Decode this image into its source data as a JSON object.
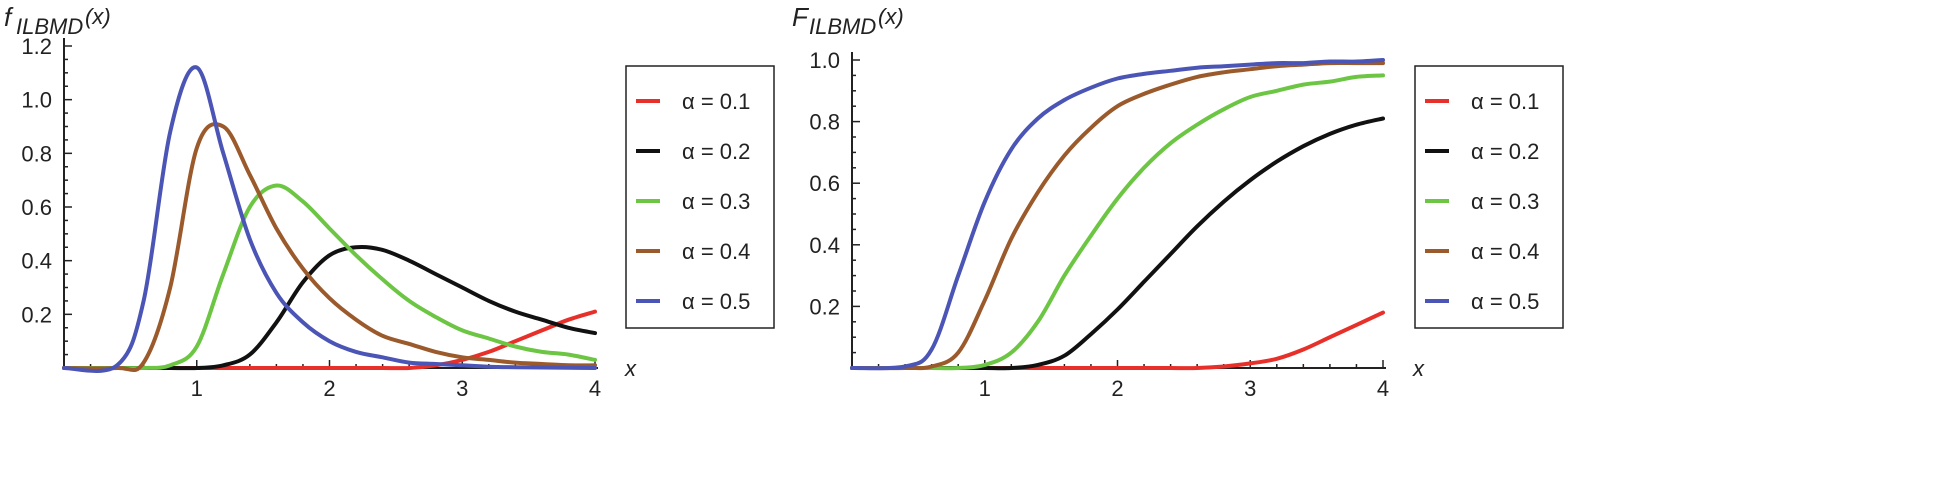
{
  "chart_data": [
    {
      "type": "line",
      "ylabel_main": "f",
      "ylabel_sub": "ILBMD",
      "ylabel_arg": "(x)",
      "xlabel": "x",
      "xlim": [
        0,
        4
      ],
      "ylim": [
        0,
        1.2
      ],
      "x_ticks": [
        1,
        2,
        3,
        4
      ],
      "y_ticks": [
        0.2,
        0.4,
        0.6,
        0.8,
        1.0,
        1.2
      ],
      "y_tick_labels": [
        "0.2",
        "0.4",
        "0.6",
        "0.8",
        "1.0",
        "1.2"
      ],
      "legend_position": "right",
      "x": [
        0,
        0.4,
        0.6,
        0.8,
        1.0,
        1.2,
        1.4,
        1.6,
        1.8,
        2.0,
        2.2,
        2.4,
        2.6,
        2.8,
        3.0,
        3.2,
        3.4,
        3.6,
        3.8,
        4.0
      ],
      "series": [
        {
          "name": "α = 0.1",
          "color": "#e8302a",
          "values": [
            0,
            0,
            0,
            0,
            0,
            0,
            0,
            0,
            0,
            0,
            0,
            0,
            0,
            0.01,
            0.03,
            0.06,
            0.1,
            0.14,
            0.18,
            0.21
          ]
        },
        {
          "name": "α = 0.2",
          "color": "#111111",
          "values": [
            0,
            0,
            0,
            0,
            0,
            0.01,
            0.05,
            0.17,
            0.32,
            0.42,
            0.45,
            0.44,
            0.4,
            0.35,
            0.3,
            0.25,
            0.21,
            0.18,
            0.15,
            0.13
          ]
        },
        {
          "name": "α = 0.3",
          "color": "#6cc644",
          "values": [
            0,
            0,
            0,
            0.01,
            0.08,
            0.35,
            0.6,
            0.68,
            0.62,
            0.52,
            0.42,
            0.33,
            0.25,
            0.19,
            0.14,
            0.11,
            0.08,
            0.06,
            0.05,
            0.03
          ]
        },
        {
          "name": "α = 0.4",
          "color": "#9b5a2c",
          "values": [
            0,
            0,
            0.02,
            0.3,
            0.82,
            0.9,
            0.72,
            0.52,
            0.37,
            0.26,
            0.18,
            0.12,
            0.09,
            0.06,
            0.04,
            0.03,
            0.02,
            0.015,
            0.01,
            0.01
          ]
        },
        {
          "name": "α = 0.5",
          "color": "#4b55b5",
          "values": [
            0,
            0.01,
            0.25,
            0.88,
            1.12,
            0.8,
            0.48,
            0.28,
            0.17,
            0.1,
            0.06,
            0.04,
            0.02,
            0.015,
            0.01,
            0.005,
            0.003,
            0.002,
            0.001,
            0
          ]
        }
      ]
    },
    {
      "type": "line",
      "ylabel_main": "F",
      "ylabel_sub": "ILBMD",
      "ylabel_arg": "(x)",
      "xlabel": "x",
      "xlim": [
        0,
        4
      ],
      "ylim": [
        0,
        1.0
      ],
      "x_ticks": [
        1,
        2,
        3,
        4
      ],
      "y_ticks": [
        0.2,
        0.4,
        0.6,
        0.8,
        1.0
      ],
      "y_tick_labels": [
        "0.2",
        "0.4",
        "0.6",
        "0.8",
        "1.0"
      ],
      "legend_position": "right",
      "x": [
        0,
        0.4,
        0.6,
        0.8,
        1.0,
        1.2,
        1.4,
        1.6,
        1.8,
        2.0,
        2.2,
        2.4,
        2.6,
        2.8,
        3.0,
        3.2,
        3.4,
        3.6,
        3.8,
        4.0
      ],
      "series": [
        {
          "name": "α = 0.1",
          "color": "#e8302a",
          "values": [
            0,
            0,
            0,
            0,
            0,
            0,
            0,
            0,
            0,
            0,
            0,
            0,
            0,
            0.005,
            0.015,
            0.03,
            0.06,
            0.1,
            0.14,
            0.18
          ]
        },
        {
          "name": "α = 0.2",
          "color": "#111111",
          "values": [
            0,
            0,
            0,
            0,
            0,
            0,
            0.01,
            0.04,
            0.11,
            0.19,
            0.28,
            0.37,
            0.46,
            0.54,
            0.61,
            0.67,
            0.72,
            0.76,
            0.79,
            0.81
          ]
        },
        {
          "name": "α = 0.3",
          "color": "#6cc644",
          "values": [
            0,
            0,
            0,
            0,
            0.01,
            0.05,
            0.15,
            0.3,
            0.43,
            0.55,
            0.65,
            0.73,
            0.79,
            0.84,
            0.88,
            0.9,
            0.92,
            0.93,
            0.945,
            0.95
          ]
        },
        {
          "name": "α = 0.4",
          "color": "#9b5a2c",
          "values": [
            0,
            0,
            0.005,
            0.05,
            0.22,
            0.42,
            0.57,
            0.69,
            0.78,
            0.85,
            0.89,
            0.92,
            0.945,
            0.96,
            0.97,
            0.98,
            0.985,
            0.99,
            0.99,
            0.99
          ]
        },
        {
          "name": "α = 0.5",
          "color": "#4b55b5",
          "values": [
            0,
            0.005,
            0.06,
            0.3,
            0.54,
            0.71,
            0.81,
            0.87,
            0.91,
            0.94,
            0.955,
            0.965,
            0.975,
            0.98,
            0.985,
            0.99,
            0.99,
            0.995,
            0.995,
            1.0
          ]
        }
      ]
    }
  ]
}
